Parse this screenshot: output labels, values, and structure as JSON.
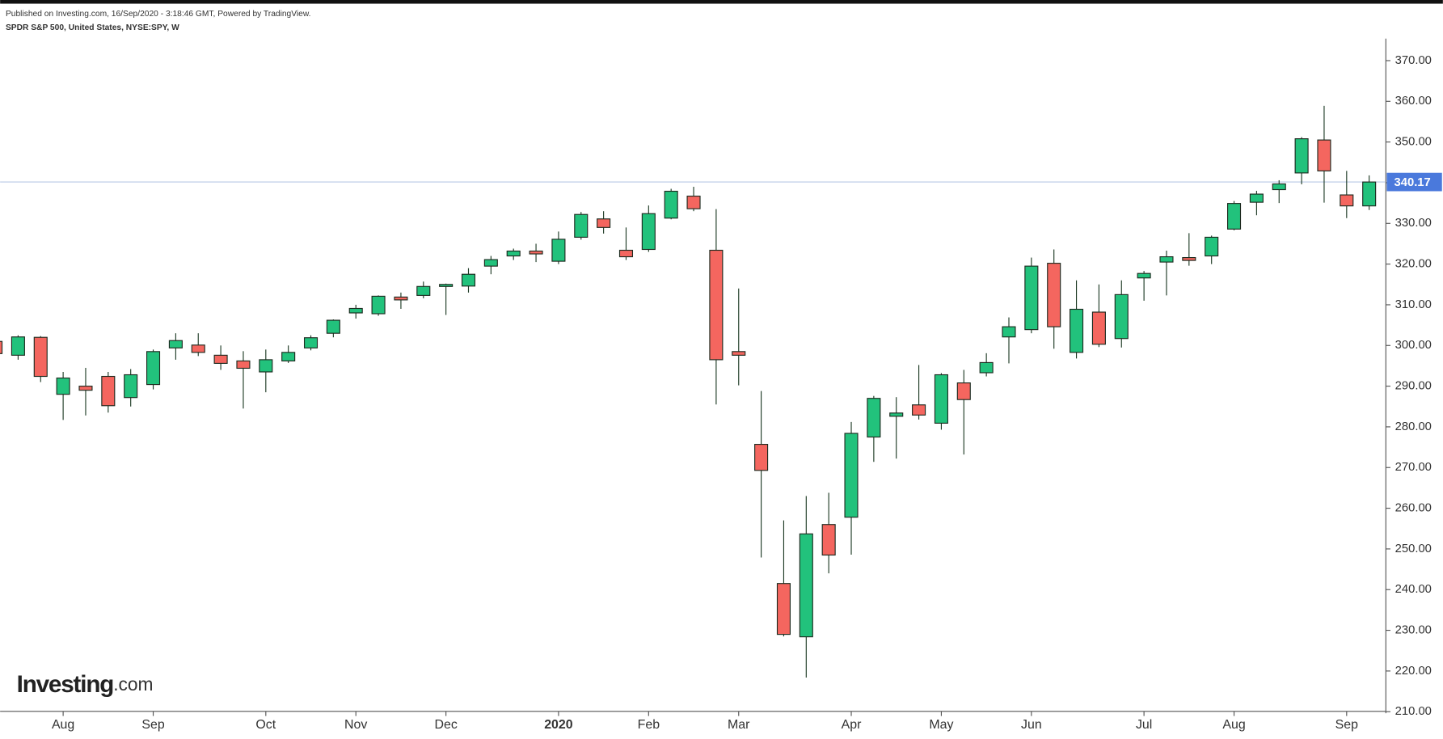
{
  "chart_data": {
    "type": "candlestick",
    "published": "Published on Investing.com, 16/Sep/2020 - 3:18:46 GMT, Powered by TradingView.",
    "title": "SPDR S&P 500, United States, NYSE:SPY, W",
    "logo": {
      "brand": "Investing",
      "suffix": ".com"
    },
    "up_color": "#22c27c",
    "down_color": "#f4665f",
    "line_color": "#b8c8e6",
    "last_color": "#4a79dc",
    "open": [
      301,
      297.6,
      302,
      288,
      290,
      292.4,
      287.2,
      290.4,
      299.4,
      300.1,
      297.6,
      296.2,
      293.5,
      296.2,
      299.4,
      303,
      308,
      307.8,
      311.9,
      312.3,
      314.5,
      314.6,
      319.5,
      322,
      323.2,
      320.7,
      326.6,
      331.1,
      323.4,
      323.6,
      331.3,
      336.7,
      323.4,
      298.5,
      275.7,
      241.5,
      228.4,
      256,
      257.8,
      277.5,
      282.6,
      285.4,
      280.9,
      290.8,
      293.3,
      302.1,
      303.9,
      320.2,
      298.3,
      308.2,
      301.7,
      316.6,
      320.5,
      321.6,
      322,
      328.6,
      335.2,
      338.3,
      342.4,
      350.5,
      337,
      334.3
    ],
    "high": [
      302,
      302.5,
      302.3,
      293.5,
      294.5,
      293.5,
      294.2,
      299,
      303,
      303,
      300,
      298.6,
      299,
      300,
      302.5,
      306.4,
      310,
      312.3,
      313,
      315.7,
      315.2,
      319,
      322,
      323.8,
      325,
      328,
      332.8,
      333,
      329,
      334.4,
      338.5,
      339,
      333.5,
      314,
      288.8,
      257,
      263,
      263.8,
      281.2,
      287.6,
      287.3,
      295.2,
      293.2,
      294,
      298.1,
      306.9,
      321.6,
      323.6,
      316,
      315,
      316,
      318.3,
      323.3,
      327.6,
      327,
      335.5,
      338,
      340.6,
      351.2,
      358.9,
      342.9,
      341.8
    ],
    "low": [
      297,
      296.5,
      291,
      281.7,
      282.8,
      283.5,
      285,
      289.2,
      296.5,
      297.4,
      294,
      284.5,
      288.5,
      295.7,
      298.8,
      302,
      306.6,
      307.3,
      309,
      311.6,
      307.5,
      313,
      317.5,
      321,
      320.5,
      320,
      326,
      327.5,
      321,
      323,
      331,
      333,
      285.5,
      290.2,
      247.9,
      228.5,
      218.4,
      244,
      248.6,
      271.4,
      272.2,
      281.8,
      279.3,
      273.2,
      292.4,
      295.6,
      303,
      299.2,
      296.8,
      299.6,
      299.5,
      311,
      312.3,
      319.6,
      320,
      328.3,
      332,
      335,
      339.6,
      335.1,
      331.3,
      333.3
    ],
    "close": [
      298,
      302.1,
      292.4,
      292,
      289,
      285.2,
      292.8,
      298.5,
      301.2,
      298.3,
      295.6,
      294.4,
      296.5,
      298.3,
      301.9,
      306.2,
      309.1,
      312.1,
      311.2,
      314.5,
      315,
      317.5,
      321.1,
      323.2,
      322.5,
      326.1,
      332.2,
      329,
      321.8,
      332.4,
      337.9,
      333.6,
      296.5,
      297.6,
      269.3,
      229,
      253.7,
      248.5,
      278.4,
      287,
      283.4,
      282.9,
      292.8,
      286.7,
      295.8,
      304.6,
      319.5,
      304.6,
      308.9,
      300.3,
      312.5,
      317.7,
      321.8,
      320.9,
      326.6,
      334.9,
      337.2,
      339.7,
      350.8,
      342.9,
      334.3,
      340.17
    ],
    "last_price": 340.17,
    "xlim": [
      0.2,
      61.7
    ],
    "xticks": [
      {
        "value": 3,
        "label": "Aug"
      },
      {
        "value": 7,
        "label": "Sep"
      },
      {
        "value": 12,
        "label": "Oct"
      },
      {
        "value": 16,
        "label": "Nov"
      },
      {
        "value": 20,
        "label": "Dec"
      },
      {
        "value": 25,
        "label": "2020",
        "bold": true
      },
      {
        "value": 29,
        "label": "Feb"
      },
      {
        "value": 33,
        "label": "Mar"
      },
      {
        "value": 38,
        "label": "Apr"
      },
      {
        "value": 42,
        "label": "May"
      },
      {
        "value": 46,
        "label": "Jun"
      },
      {
        "value": 51,
        "label": "Jul"
      },
      {
        "value": 55,
        "label": "Aug"
      },
      {
        "value": 60,
        "label": "Sep"
      }
    ],
    "ylim": [
      210.3,
      375.4
    ],
    "yticks": [
      {
        "value": 210,
        "label": "210.00"
      },
      {
        "value": 220,
        "label": "220.00"
      },
      {
        "value": 230,
        "label": "230.00"
      },
      {
        "value": 240,
        "label": "240.00"
      },
      {
        "value": 250,
        "label": "250.00"
      },
      {
        "value": 260,
        "label": "260.00"
      },
      {
        "value": 270,
        "label": "270.00"
      },
      {
        "value": 280,
        "label": "280.00"
      },
      {
        "value": 290,
        "label": "290.00"
      },
      {
        "value": 300,
        "label": "300.00"
      },
      {
        "value": 310,
        "label": "310.00"
      },
      {
        "value": 320,
        "label": "320.00"
      },
      {
        "value": 330,
        "label": "330.00"
      },
      {
        "value": 340,
        "label": "340.00"
      },
      {
        "value": 350,
        "label": "350.00"
      },
      {
        "value": 360,
        "label": "360.00"
      },
      {
        "value": 370,
        "label": "370.00"
      }
    ]
  }
}
